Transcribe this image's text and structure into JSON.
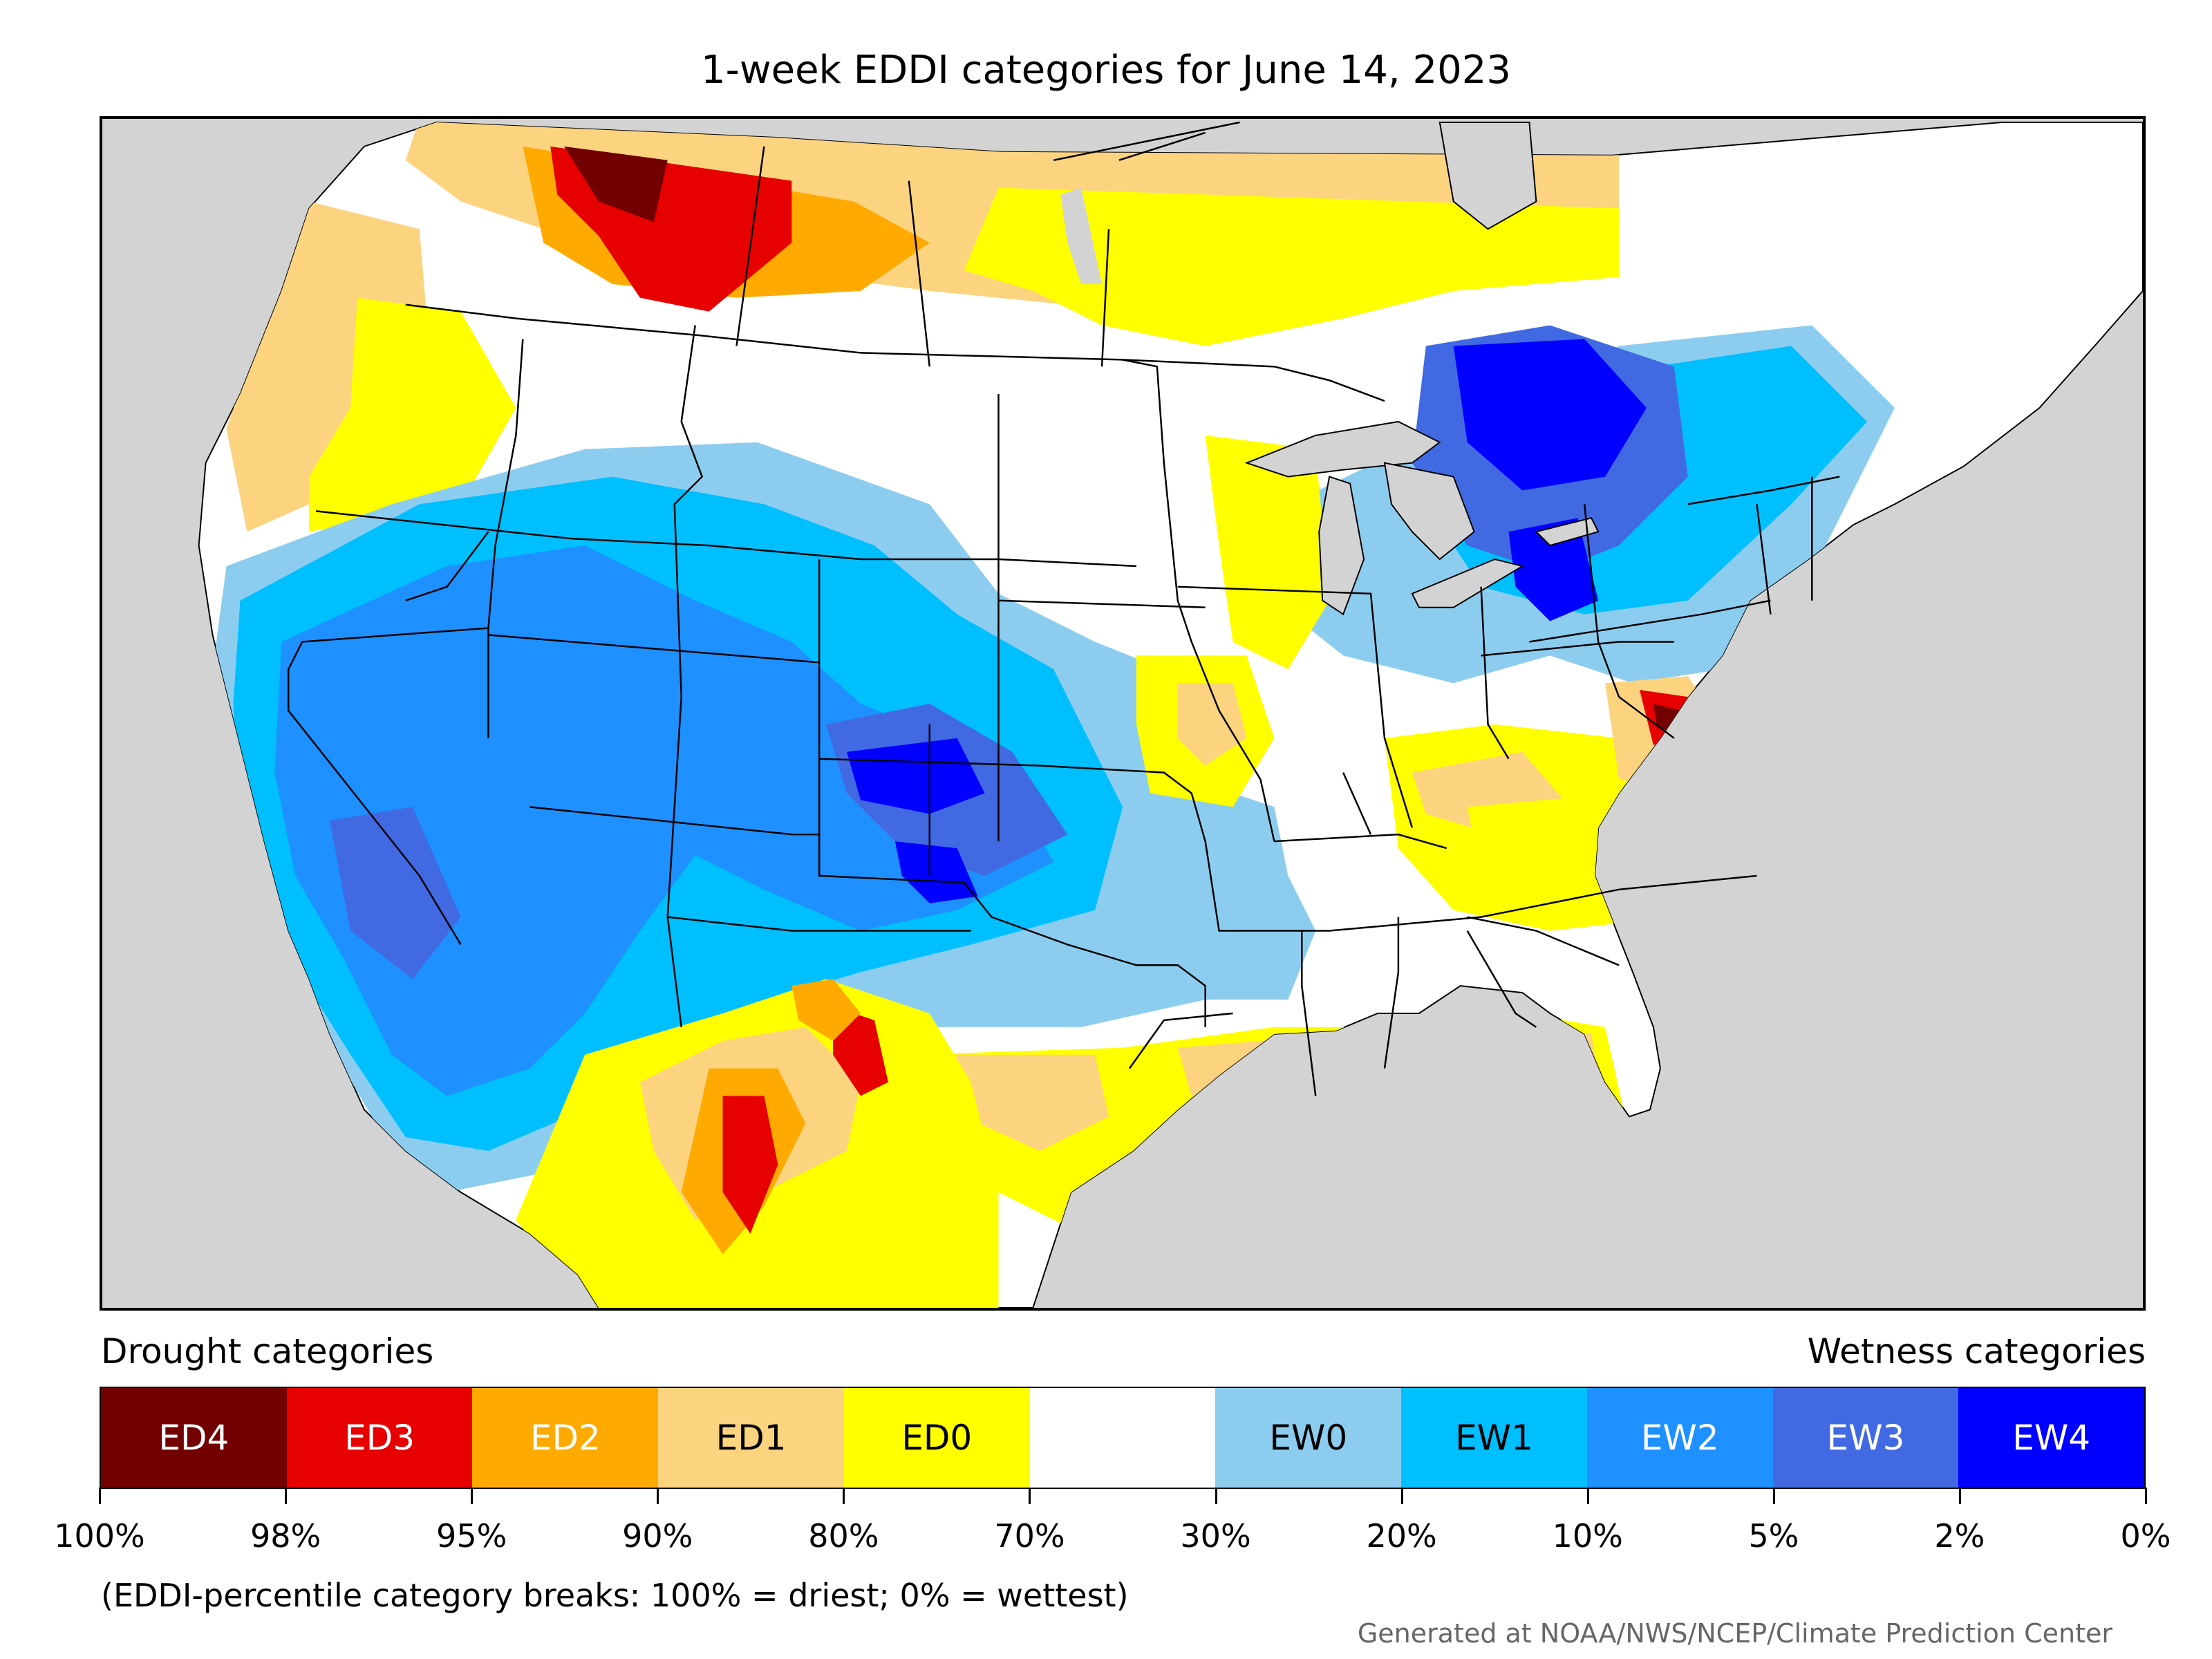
{
  "title": "1-week EDDI categories for June 14, 2023",
  "legend": {
    "drought_label": "Drought categories",
    "wetness_label": "Wetness categories",
    "categories": [
      {
        "label": "ED4",
        "color": "#730000",
        "text_color": "#ffffff"
      },
      {
        "label": "ED3",
        "color": "#e60000",
        "text_color": "#ffffff"
      },
      {
        "label": "ED2",
        "color": "#ffaa00",
        "text_color": "#ffffff"
      },
      {
        "label": "ED1",
        "color": "#fcd37f",
        "text_color": "#000000"
      },
      {
        "label": "ED0",
        "color": "#ffff00",
        "text_color": "#000000"
      },
      {
        "label": "",
        "color": "#ffffff",
        "text_color": "#000000"
      },
      {
        "label": "EW0",
        "color": "#8ccdef",
        "text_color": "#000000"
      },
      {
        "label": "EW1",
        "color": "#00bfff",
        "text_color": "#000000"
      },
      {
        "label": "EW2",
        "color": "#1e90ff",
        "text_color": "#ffffff"
      },
      {
        "label": "EW3",
        "color": "#4169e1",
        "text_color": "#ffffff"
      },
      {
        "label": "EW4",
        "color": "#0000ff",
        "text_color": "#ffffff"
      }
    ],
    "ticks": [
      "100%",
      "98%",
      "95%",
      "90%",
      "80%",
      "70%",
      "30%",
      "20%",
      "10%",
      "5%",
      "2%",
      "0%"
    ]
  },
  "note": "(EDDI-percentile category breaks: 100% = driest; 0% = wettest)",
  "credit": "Generated at NOAA/NWS/NCEP/Climate Prediction Center",
  "colors": {
    "ocean": "#d3d3d3",
    "land": "#ffffff",
    "border": "#000000"
  }
}
